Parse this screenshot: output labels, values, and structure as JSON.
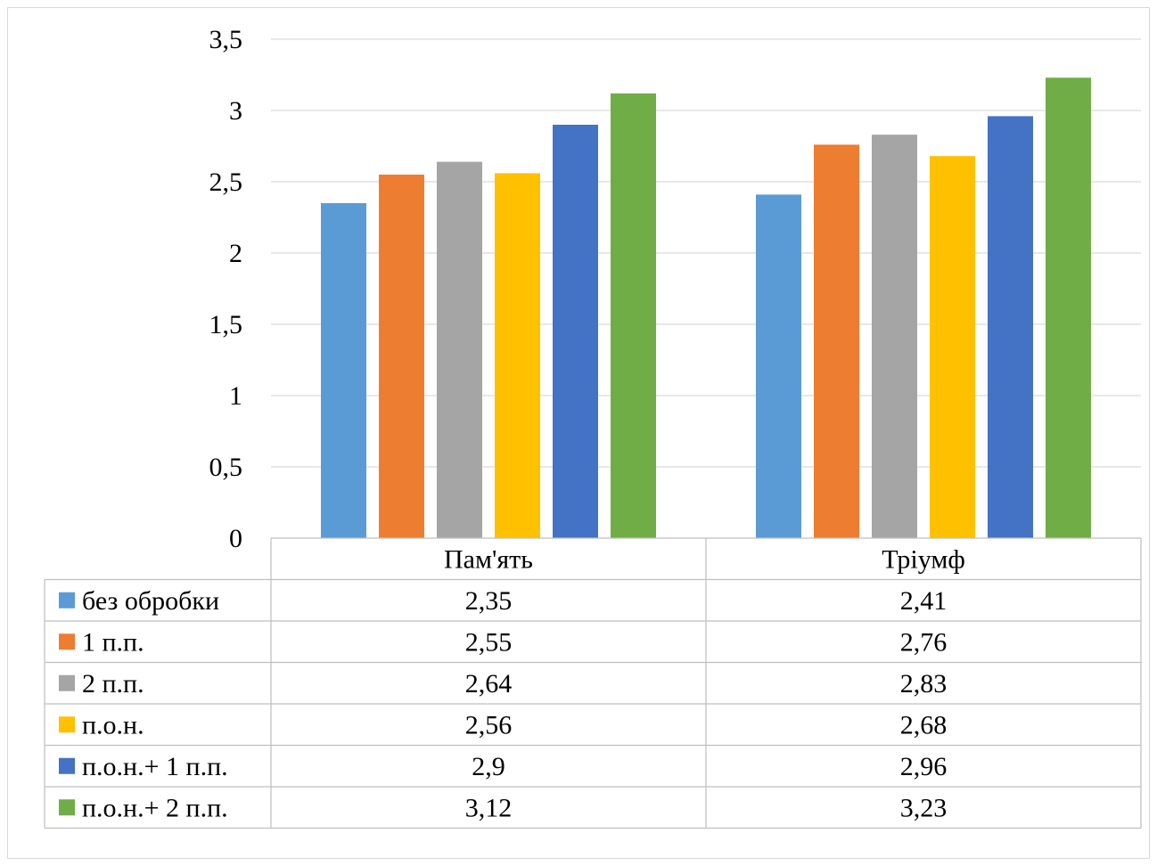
{
  "chart_data": {
    "type": "bar",
    "categories": [
      "Пам'ять",
      "Тріумф"
    ],
    "series": [
      {
        "name": "без обробки",
        "color": "#5B9BD5",
        "values": [
          2.35,
          2.41
        ],
        "labels": [
          "2,35",
          "2,41"
        ]
      },
      {
        "name": "1 п.п.",
        "color": "#ED7D31",
        "values": [
          2.55,
          2.76
        ],
        "labels": [
          "2,55",
          "2,76"
        ]
      },
      {
        "name": "2 п.п.",
        "color": "#A5A5A5",
        "values": [
          2.64,
          2.83
        ],
        "labels": [
          "2,64",
          "2,83"
        ]
      },
      {
        "name": "п.о.н.",
        "color": "#FFC000",
        "values": [
          2.56,
          2.68
        ],
        "labels": [
          "2,56",
          "2,68"
        ]
      },
      {
        "name": "п.о.н.+ 1 п.п.",
        "color": "#4472C4",
        "values": [
          2.9,
          2.96
        ],
        "labels": [
          "2,9",
          "2,96"
        ]
      },
      {
        "name": "п.о.н.+ 2 п.п.",
        "color": "#70AD47",
        "values": [
          3.12,
          3.23
        ],
        "labels": [
          "3,12",
          "3,23"
        ]
      }
    ],
    "ylim": [
      0,
      3.5
    ],
    "yticks": [
      0,
      0.5,
      1,
      1.5,
      2,
      2.5,
      3,
      3.5
    ],
    "ytick_labels": [
      "0",
      "0,5",
      "1",
      "1,5",
      "2",
      "2,5",
      "3",
      "3,5"
    ],
    "grid": true,
    "legend": "data table below chart",
    "title": "",
    "xlabel": "",
    "ylabel": ""
  }
}
